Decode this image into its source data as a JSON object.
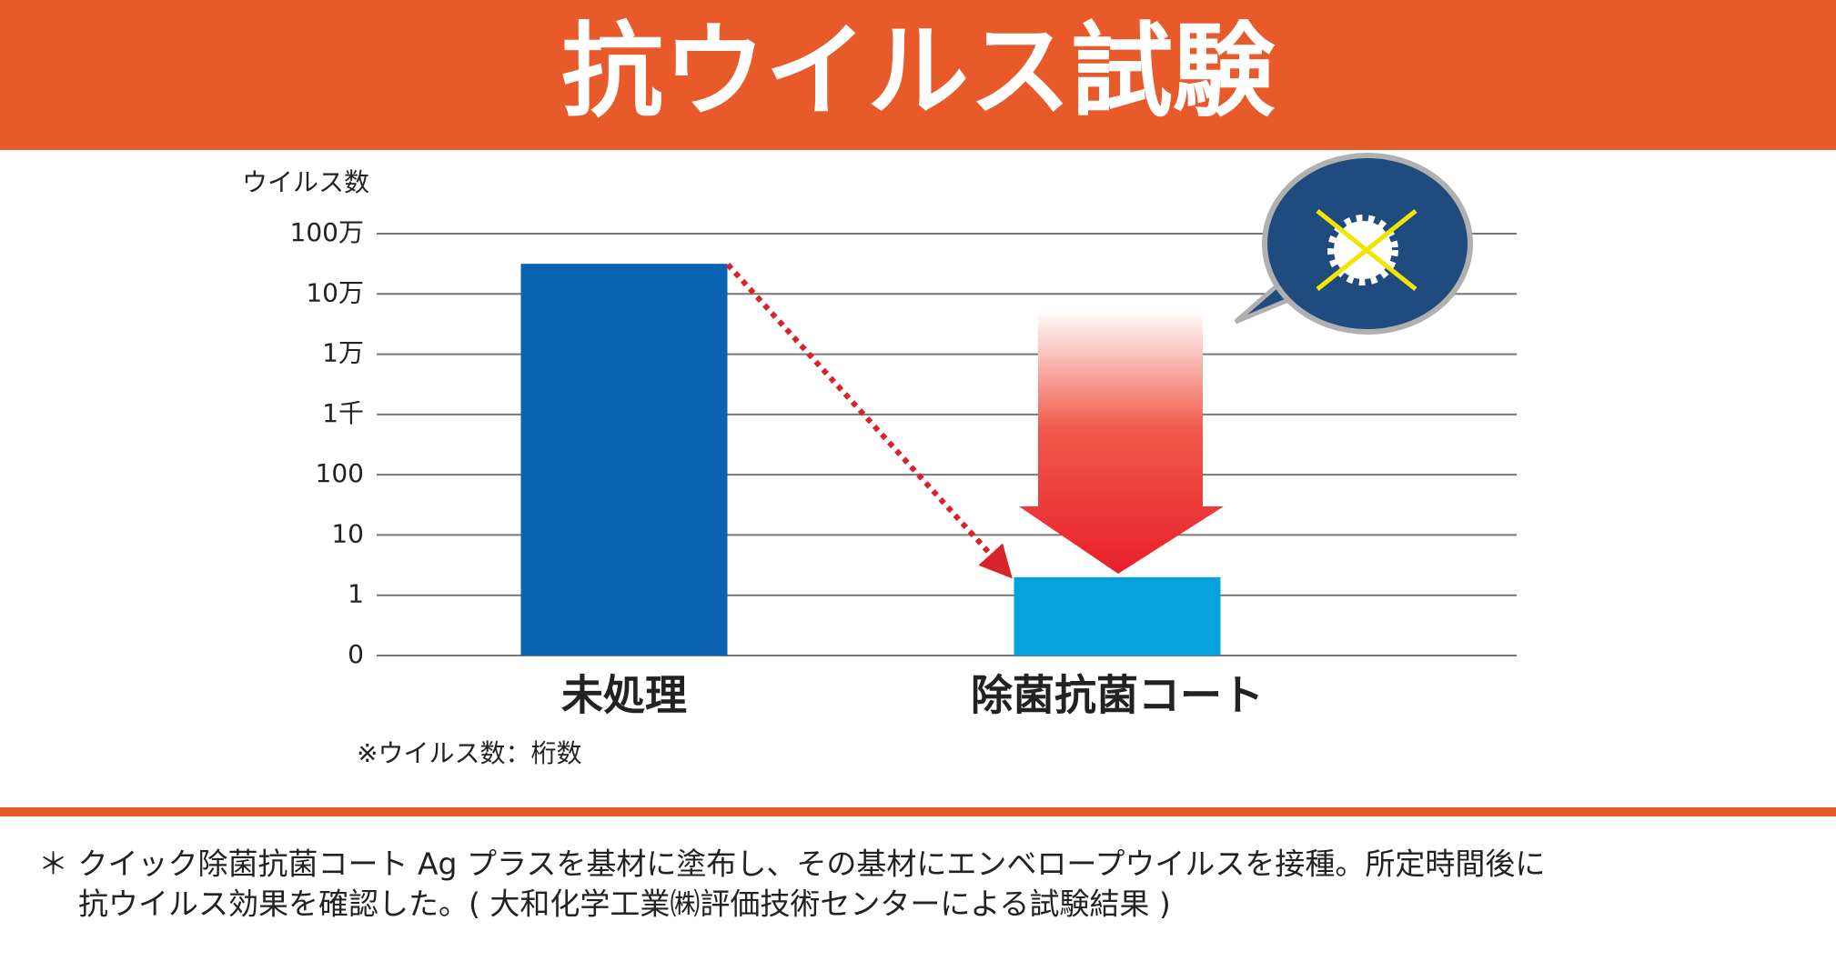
{
  "chart_data": {
    "type": "bar",
    "title": "抗ウイルス試験",
    "y_label": "ウイルス数",
    "note": "※ウイルス数：桁数",
    "categories": [
      "未処理",
      "除菌抗菌コート"
    ],
    "values": [
      6.5,
      1.3
    ],
    "colors": [
      "#0a62b2",
      "#04a3df"
    ],
    "ylim": [
      0,
      7
    ],
    "yticks": [
      0,
      1,
      {
        "value": 2,
        "label": "10"
      },
      {
        "value": 3,
        "label": "100"
      },
      {
        "value": 4,
        "label": "1千"
      },
      {
        "value": 5,
        "label": "1万"
      },
      {
        "value": 6,
        "label": "10万"
      },
      {
        "value": 7,
        "label": "100万"
      }
    ],
    "grid": true
  },
  "footnote": {
    "lines": [
      "＊ クイック除菌抗菌コート Ag プラスを基材に塗布し、その基材にエンベロープウイルスを接種。所定時間後に",
      "抗ウイルス効果を確認した。( 大和化学工業㈱評価技術センターによる試験結果 )"
    ]
  }
}
